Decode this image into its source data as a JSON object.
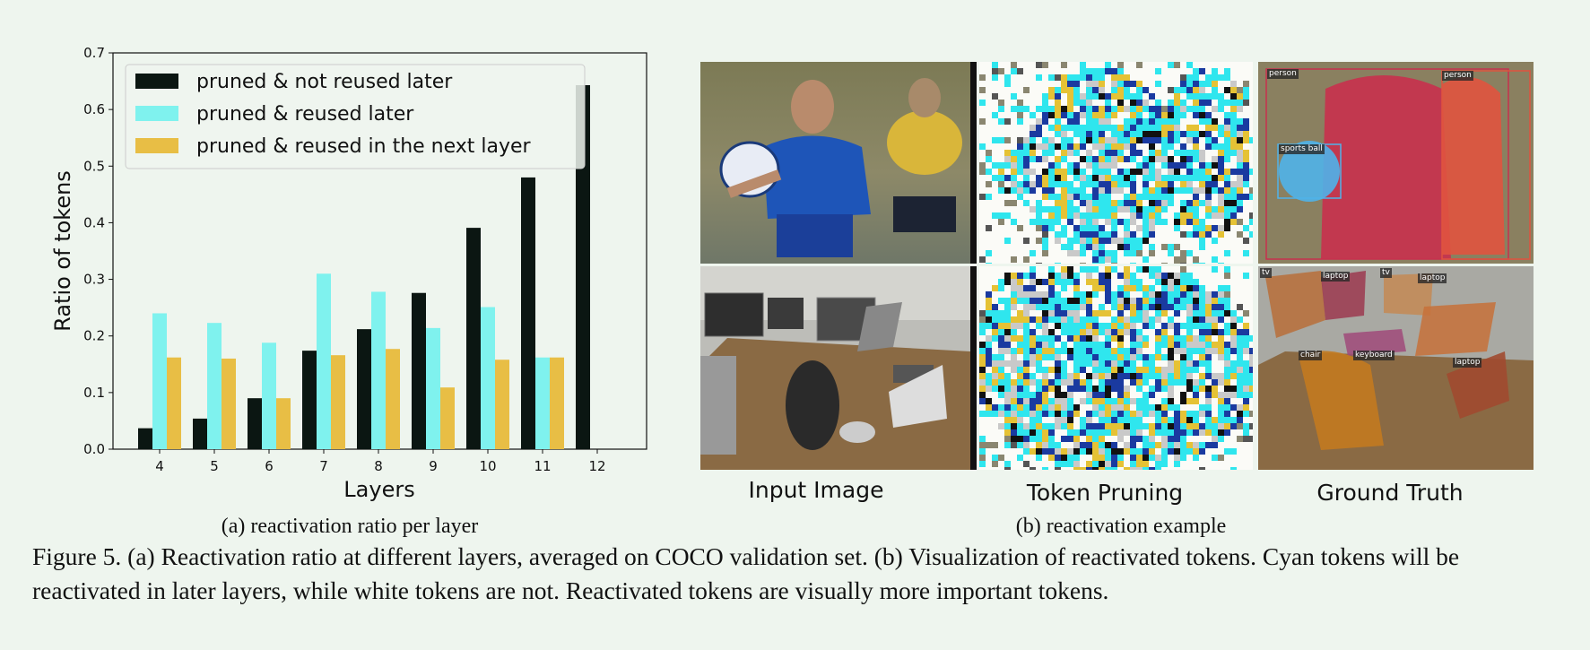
{
  "colors": {
    "not_reused": "#0b1612",
    "reused_later": "#7ff2ee",
    "reused_next": "#e8be45",
    "background": "#eef5ee"
  },
  "chart_data": {
    "type": "bar",
    "categories": [
      "4",
      "5",
      "6",
      "7",
      "8",
      "9",
      "10",
      "11",
      "12"
    ],
    "series": [
      {
        "name": "pruned & not reused later",
        "color": "#0b1612",
        "values": [
          0.037,
          0.054,
          0.09,
          0.174,
          0.212,
          0.276,
          0.391,
          0.48,
          0.643
        ]
      },
      {
        "name": "pruned & reused later",
        "color": "#7ff2ee",
        "values": [
          0.24,
          0.223,
          0.188,
          0.31,
          0.278,
          0.214,
          0.251,
          0.162,
          0
        ]
      },
      {
        "name": "pruned & reused in the next layer",
        "color": "#e8be45",
        "values": [
          0.162,
          0.16,
          0.09,
          0.166,
          0.177,
          0.109,
          0.158,
          0.162,
          0
        ]
      }
    ],
    "xlabel": "Layers",
    "ylabel": "Ratio of tokens",
    "ylim": [
      0,
      0.7
    ],
    "yticks": [
      "0.0",
      "0.1",
      "0.2",
      "0.3",
      "0.4",
      "0.5",
      "0.6",
      "0.7"
    ],
    "legend_position": "top-left",
    "grid": false
  },
  "panel_b": {
    "column_labels": [
      "Input Image",
      "Token Pruning",
      "Ground Truth"
    ],
    "detection_labels": {
      "row1": [
        "person",
        "person",
        "sports ball"
      ],
      "row2": [
        "tv",
        "laptop",
        "tv",
        "laptop",
        "chair",
        "keyboard",
        "laptop"
      ]
    }
  },
  "subcaptions": {
    "a": "(a) reactivation ratio per layer",
    "b": "(b) reactivation example"
  },
  "caption": "Figure 5. (a) Reactivation ratio at different layers, averaged on COCO validation set. (b) Visualization of reactivated tokens. Cyan tokens will be reactivated in later layers, while white tokens are not. Reactivated tokens are visually more important tokens."
}
